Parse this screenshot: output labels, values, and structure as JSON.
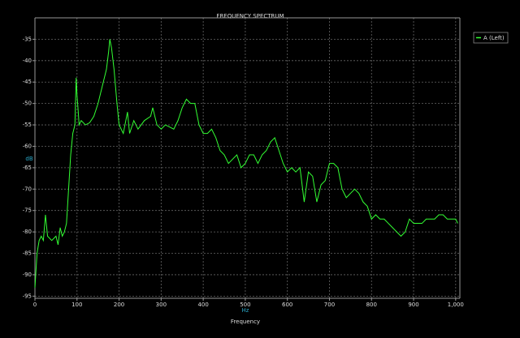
{
  "chart_data": {
    "type": "line",
    "title": "FREQUENCY SPECTRUM",
    "x_label": "Frequency",
    "x_unit": "Hz",
    "y_label": "dB",
    "xlim": [
      0,
      1010
    ],
    "ylim": [
      -95.5,
      -30
    ],
    "xticks": [
      0,
      100,
      200,
      300,
      400,
      500,
      600,
      700,
      800,
      900,
      {
        "value": 1000,
        "label": "1,000"
      }
    ],
    "yticks": [
      -35,
      -40,
      -45,
      -50,
      -55,
      -60,
      -65,
      -70,
      -75,
      -80,
      -85,
      -90,
      -95
    ],
    "grid": true,
    "legend": "right",
    "background": "#000000",
    "series": [
      {
        "name": "A (Left)",
        "color": "#33ff33",
        "x": [
          0,
          5,
          10,
          15,
          20,
          25,
          30,
          40,
          50,
          55,
          60,
          65,
          70,
          75,
          80,
          85,
          90,
          95,
          98,
          100,
          103,
          105,
          110,
          120,
          130,
          140,
          150,
          160,
          170,
          175,
          178,
          182,
          188,
          195,
          200,
          210,
          220,
          225,
          235,
          245,
          260,
          275,
          280,
          290,
          300,
          310,
          320,
          330,
          340,
          350,
          360,
          370,
          380,
          390,
          400,
          410,
          420,
          430,
          440,
          450,
          460,
          470,
          480,
          490,
          500,
          510,
          520,
          530,
          540,
          550,
          560,
          570,
          580,
          590,
          600,
          610,
          620,
          630,
          640,
          650,
          660,
          670,
          680,
          690,
          700,
          710,
          720,
          730,
          740,
          750,
          760,
          770,
          780,
          790,
          800,
          810,
          820,
          830,
          840,
          850,
          860,
          870,
          880,
          890,
          900,
          910,
          920,
          930,
          940,
          950,
          960,
          970,
          980,
          990,
          1000,
          1005
        ],
        "values": [
          -93,
          -85,
          -82,
          -81,
          -82,
          -76,
          -81,
          -82,
          -81,
          -83,
          -79,
          -81,
          -80,
          -78,
          -70,
          -62,
          -57,
          -55,
          -44,
          -48,
          -52,
          -55,
          -54,
          -55,
          -54.5,
          -53,
          -50,
          -46,
          -42,
          -38,
          -35,
          -37,
          -42,
          -50,
          -55,
          -57,
          -52,
          -57,
          -54,
          -56,
          -54,
          -53,
          -51,
          -55,
          -56,
          -55,
          -55.5,
          -56,
          -54,
          -51,
          -49,
          -50,
          -50,
          -55,
          -57,
          -57,
          -56,
          -58,
          -61,
          -62,
          -64,
          -63,
          -62,
          -65,
          -64,
          -62,
          -62,
          -64,
          -62,
          -61,
          -59,
          -58,
          -61,
          -64,
          -66,
          -65,
          -66,
          -65,
          -73,
          -66,
          -67,
          -73,
          -69,
          -68,
          -64,
          -64,
          -65,
          -70,
          -72,
          -71,
          -70,
          -71,
          -73,
          -74,
          -77,
          -76,
          -77,
          -77,
          -78,
          -79,
          -80,
          -81,
          -80,
          -77,
          -78,
          -78,
          -78,
          -77,
          -77,
          -77,
          -76,
          -76,
          -77,
          -77,
          -77,
          -78
        ]
      }
    ]
  }
}
